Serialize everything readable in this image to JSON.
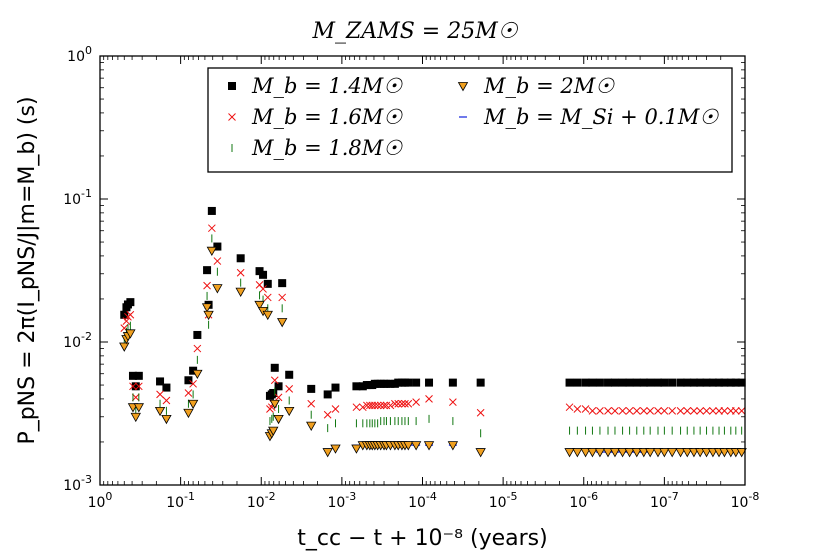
{
  "chart_data": {
    "type": "scatter",
    "title": "M_ZAMS = 25M☉",
    "xlabel": "t_cc − t + 10⁻⁸ (years)",
    "ylabel": "P_pNS = 2π(I_pNS/J|m=M_b) (s)",
    "xscale": "log",
    "yscale": "log",
    "xaxis_inverted": true,
    "xlim": [
      1,
      1e-08
    ],
    "ylim": [
      0.001,
      1
    ],
    "x_ticks": [
      {
        "value": 1,
        "base": "10",
        "exp": "0"
      },
      {
        "value": 0.1,
        "base": "10",
        "exp": "-1"
      },
      {
        "value": 0.01,
        "base": "10",
        "exp": "-2"
      },
      {
        "value": 0.001,
        "base": "10",
        "exp": "-3"
      },
      {
        "value": 0.0001,
        "base": "10",
        "exp": "-4"
      },
      {
        "value": 1e-05,
        "base": "10",
        "exp": "-5"
      },
      {
        "value": 1e-06,
        "base": "10",
        "exp": "-6"
      },
      {
        "value": 1e-07,
        "base": "10",
        "exp": "-7"
      },
      {
        "value": 1e-08,
        "base": "10",
        "exp": "-8"
      }
    ],
    "y_ticks": [
      {
        "value": 0.001,
        "base": "10",
        "exp": "-3"
      },
      {
        "value": 0.01,
        "base": "10",
        "exp": "-2"
      },
      {
        "value": 0.1,
        "base": "10",
        "exp": "-1"
      },
      {
        "value": 1,
        "base": "10",
        "exp": "0"
      }
    ],
    "legend": {
      "placement": "top-right",
      "labels": [
        "M_b = 1.4M☉",
        "M_b = 1.6M☉",
        "M_b = 1.8M☉",
        "M_b = 2M☉",
        "M_b = M_Si + 0.1M☉"
      ]
    },
    "x": [
      0.5,
      0.47,
      0.45,
      0.42,
      0.39,
      0.36,
      0.33,
      0.18,
      0.15,
      0.08,
      0.07,
      0.062,
      0.047,
      0.045,
      0.041,
      0.035,
      0.018,
      0.0105,
      0.0095,
      0.0083,
      0.0078,
      0.0074,
      0.0071,
      0.0068,
      0.0061,
      0.0055,
      0.0045,
      0.0024,
      0.0015,
      0.0012,
      0.00066,
      0.00055,
      0.00049,
      0.00045,
      0.00042,
      0.00039,
      0.00036,
      0.00033,
      0.0003,
      0.00028,
      0.00025,
      0.00022,
      0.0002,
      0.00018,
      0.000165,
      0.00015,
      0.00012,
      8.3e-05,
      4.2e-05,
      1.9e-05,
      1.5e-06,
      1.2e-06,
      9.5e-07,
      7.8e-07,
      6.3e-07,
      5e-07,
      4.1e-07,
      3.3e-07,
      2.7e-07,
      2.2e-07,
      1.8e-07,
      1.5e-07,
      1.2e-07,
      1e-07,
      8e-08,
      6.3e-08,
      5.2e-08,
      4.3e-08,
      3.6e-08,
      3e-08,
      2.5e-08,
      2.1e-08,
      1.8e-08,
      1.5e-08,
      1.3e-08,
      1.1e-08
    ],
    "series": [
      {
        "name": "M_b = 1.4M☉",
        "marker": "square",
        "color": "#000000",
        "values": [
          0.0155,
          0.0175,
          0.0183,
          0.019,
          0.0058,
          0.0049,
          0.0058,
          0.0053,
          0.0048,
          0.0054,
          0.0063,
          0.0112,
          0.0318,
          0.0182,
          0.0825,
          0.0465,
          0.0385,
          0.0313,
          0.0295,
          0.0255,
          0.0042,
          0.0043,
          0.0044,
          0.0066,
          0.0049,
          0.0258,
          0.0059,
          0.0047,
          0.0043,
          0.0048,
          0.0049,
          0.0049,
          0.005,
          0.005,
          0.005,
          0.0051,
          0.0051,
          0.0051,
          0.0051,
          0.0051,
          0.0051,
          0.0051,
          0.0052,
          0.0052,
          0.0052,
          0.0052,
          0.0052,
          0.0052,
          0.0052,
          0.0052,
          0.0052,
          0.0052,
          0.0052,
          0.0052,
          0.0052,
          0.0052,
          0.0052,
          0.0052,
          0.0052,
          0.0052,
          0.0052,
          0.0052,
          0.0052,
          0.0052,
          0.0052,
          0.0052,
          0.0052,
          0.0052,
          0.0052,
          0.0052,
          0.0052,
          0.0052,
          0.0052,
          0.0052,
          0.0052,
          0.0052
        ]
      },
      {
        "name": "M_b = 1.6M☉",
        "marker": "x",
        "color": "#ee1111",
        "values": [
          0.0125,
          0.014,
          0.015,
          0.0155,
          0.0049,
          0.0041,
          0.0049,
          0.0043,
          0.0039,
          0.0044,
          0.0051,
          0.009,
          0.0248,
          0.0155,
          0.0625,
          0.0368,
          0.0305,
          0.0251,
          0.0235,
          0.0205,
          0.0034,
          0.0035,
          0.0037,
          0.0054,
          0.0041,
          0.0205,
          0.0047,
          0.0037,
          0.0031,
          0.0034,
          0.0035,
          0.0035,
          0.0036,
          0.0036,
          0.0036,
          0.0036,
          0.0036,
          0.0036,
          0.0036,
          0.0036,
          0.0036,
          0.0037,
          0.0037,
          0.0037,
          0.0037,
          0.0037,
          0.0038,
          0.004,
          0.0038,
          0.0032,
          0.0035,
          0.0034,
          0.0034,
          0.0033,
          0.0033,
          0.0033,
          0.0033,
          0.0033,
          0.0033,
          0.0033,
          0.0033,
          0.0033,
          0.0033,
          0.0033,
          0.0033,
          0.0033,
          0.0033,
          0.0033,
          0.0033,
          0.0033,
          0.0033,
          0.0033,
          0.0033,
          0.0033,
          0.0033,
          0.0033
        ]
      },
      {
        "name": "M_b = 1.8M☉",
        "marker": "vline",
        "color": "#117711",
        "values": [
          0.0105,
          0.0118,
          0.0125,
          0.013,
          0.0041,
          0.0034,
          0.0041,
          0.0037,
          0.0033,
          0.0037,
          0.0043,
          0.0075,
          0.021,
          0.0132,
          0.053,
          0.031,
          0.026,
          0.0212,
          0.0198,
          0.0172,
          0.0028,
          0.0029,
          0.003,
          0.0045,
          0.0034,
          0.0172,
          0.0039,
          0.0031,
          0.0025,
          0.0027,
          0.0027,
          0.0027,
          0.0027,
          0.0027,
          0.0027,
          0.0027,
          0.0027,
          0.0028,
          0.0028,
          0.0028,
          0.0028,
          0.0028,
          0.0028,
          0.0028,
          0.0028,
          0.0028,
          0.0028,
          0.0029,
          0.0028,
          0.0023,
          0.0024,
          0.0024,
          0.0024,
          0.0024,
          0.0024,
          0.0024,
          0.0024,
          0.0024,
          0.0024,
          0.0024,
          0.0024,
          0.0024,
          0.0024,
          0.0024,
          0.0024,
          0.0024,
          0.0024,
          0.0024,
          0.0024,
          0.0024,
          0.0024,
          0.0024,
          0.0024,
          0.0024,
          0.0024,
          0.0024
        ]
      },
      {
        "name": "M_b = 2M☉",
        "marker": "triangle-down",
        "color": "#f0a020",
        "values": [
          0.0093,
          0.0105,
          0.011,
          0.0115,
          0.0035,
          0.003,
          0.0035,
          0.0033,
          0.0029,
          0.0032,
          0.0037,
          0.006,
          0.0175,
          0.0155,
          0.0435,
          0.0238,
          0.0225,
          0.0182,
          0.0165,
          0.0155,
          0.0022,
          0.0023,
          0.0024,
          0.0037,
          0.0029,
          0.0138,
          0.0033,
          0.0026,
          0.0017,
          0.0018,
          0.0018,
          0.0019,
          0.0019,
          0.0019,
          0.0019,
          0.0019,
          0.0019,
          0.0019,
          0.0019,
          0.0019,
          0.0019,
          0.0019,
          0.0019,
          0.0019,
          0.0019,
          0.0019,
          0.0019,
          0.0019,
          0.0019,
          0.0017,
          0.0017,
          0.0017,
          0.0017,
          0.0017,
          0.0017,
          0.0017,
          0.0017,
          0.0017,
          0.0017,
          0.0017,
          0.0017,
          0.0017,
          0.0017,
          0.0017,
          0.0017,
          0.0017,
          0.0017,
          0.0017,
          0.0017,
          0.0017,
          0.0017,
          0.0017,
          0.0017,
          0.0017,
          0.0017,
          0.0017
        ]
      },
      {
        "name": "M_b = M_Si + 0.1M☉",
        "marker": "hline",
        "color": "#1020dd",
        "values": [
          null,
          null,
          null,
          null,
          null,
          null,
          null,
          null,
          null,
          null,
          null,
          null,
          null,
          null,
          null,
          null,
          null,
          null,
          null,
          null,
          null,
          null,
          null,
          null,
          null,
          null,
          null,
          null,
          null,
          0.00185,
          0.0019,
          0.0019,
          0.0019,
          0.0019,
          0.0019,
          0.0019,
          0.0019,
          0.0019,
          0.0019,
          0.0019,
          0.0019,
          0.0019,
          0.0019,
          0.0019,
          0.0019,
          0.0019,
          0.0019,
          0.0019,
          0.0019,
          null,
          null,
          null,
          null,
          null,
          0.0017,
          0.0017,
          0.0017,
          0.0017,
          0.0017,
          0.0017,
          0.0017,
          null,
          null,
          null,
          null,
          null,
          null,
          null,
          null,
          null,
          null,
          null,
          null,
          null,
          null,
          null
        ]
      }
    ]
  }
}
